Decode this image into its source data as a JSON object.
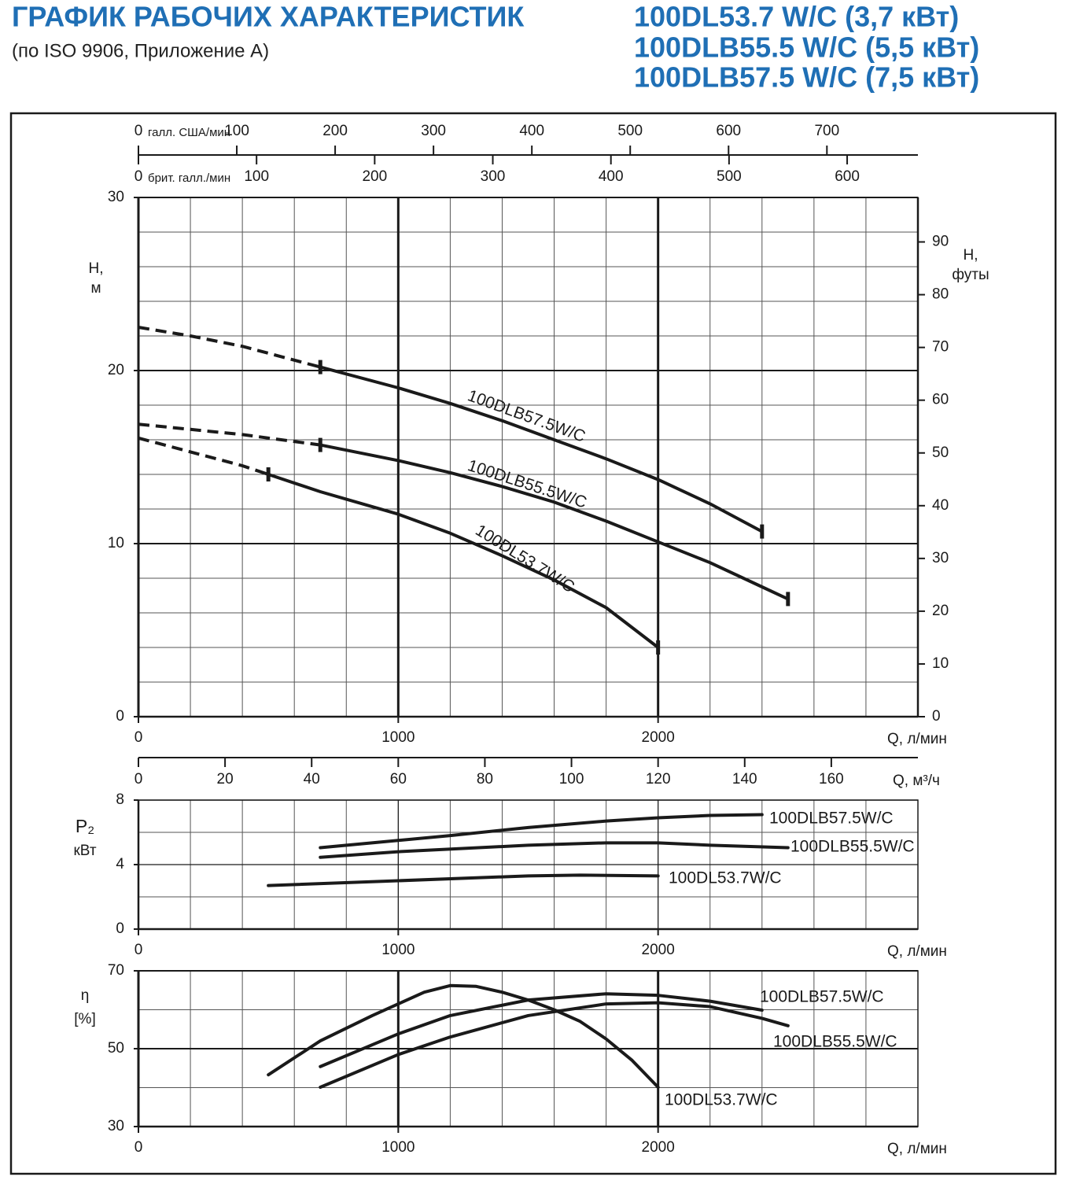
{
  "header": {
    "title": "ГРАФИК РАБОЧИХ ХАРАКТЕРИСТИК",
    "subtitle": "(по ISO 9906, Приложение A)",
    "models": [
      "100DL53.7 W/C (3,7 кВт)",
      "100DLB55.5 W/C (5,5 кВт)",
      "100DLB57.5 W/C (7,5 кВт)"
    ]
  },
  "chart_data": [
    {
      "type": "line",
      "xlabel": "Q, л/мин",
      "ylabel": [
        "H,",
        "м"
      ],
      "y2label": [
        "H,",
        "футы"
      ],
      "xlim": [
        0,
        3000
      ],
      "xticks": [
        0,
        1000,
        2000
      ],
      "ylim": [
        0,
        30
      ],
      "yticks": [
        0,
        10,
        20,
        30
      ],
      "y2lim": [
        0,
        98.43
      ],
      "y2ticks": [
        0,
        10,
        20,
        30,
        40,
        50,
        60,
        70,
        80,
        90
      ],
      "grid": {
        "x": 200,
        "y": 2
      },
      "top_axes": [
        {
          "label": "галл. США/мин",
          "xlim": [
            0,
            792.52
          ],
          "xticks": [
            0,
            100,
            200,
            300,
            400,
            500,
            600,
            700
          ]
        },
        {
          "label": "брит. галл./мин",
          "xlim": [
            0,
            659.9
          ],
          "xticks": [
            0,
            100,
            200,
            300,
            400,
            500,
            600
          ]
        }
      ],
      "bottom_axis2": {
        "label": "Q, м³/ч",
        "xlim": [
          0,
          180
        ],
        "xticks": [
          0,
          20,
          40,
          60,
          80,
          100,
          120,
          140,
          160
        ]
      },
      "series": [
        {
          "name": "100DLB57.5W/C",
          "color": "#1a1a1a",
          "dashed_to": 700,
          "x": [
            0,
            200,
            400,
            700,
            1000,
            1200,
            1400,
            1600,
            1800,
            2000,
            2200,
            2400
          ],
          "values": [
            22.5,
            22.0,
            21.4,
            20.2,
            19.0,
            18.1,
            17.1,
            16.0,
            14.9,
            13.7,
            12.3,
            10.7
          ]
        },
        {
          "name": "100DLB55.5W/C",
          "color": "#1a1a1a",
          "dashed_to": 700,
          "x": [
            0,
            200,
            400,
            700,
            1000,
            1200,
            1400,
            1600,
            1800,
            2000,
            2200,
            2400,
            2500
          ],
          "values": [
            16.9,
            16.6,
            16.3,
            15.7,
            14.8,
            14.1,
            13.3,
            12.4,
            11.3,
            10.1,
            8.9,
            7.5,
            6.8
          ]
        },
        {
          "name": "100DL53.7W/C",
          "color": "#1a1a1a",
          "dashed_to": 500,
          "x": [
            0,
            200,
            400,
            500,
            700,
            1000,
            1200,
            1400,
            1600,
            1800,
            2000
          ],
          "values": [
            16.1,
            15.3,
            14.5,
            14.0,
            13.0,
            11.7,
            10.6,
            9.3,
            7.9,
            6.3,
            4.0
          ]
        }
      ]
    },
    {
      "type": "line",
      "xlabel": "Q, л/мин",
      "ylabel": [
        "P₂",
        "кВт"
      ],
      "xlim": [
        0,
        3000
      ],
      "xticks": [
        0,
        1000,
        2000
      ],
      "ylim": [
        0,
        8
      ],
      "yticks": [
        0,
        4,
        8
      ],
      "grid": {
        "x": 200,
        "y": 2
      },
      "series": [
        {
          "name": "100DLB57.5W/C",
          "color": "#1a1a1a",
          "x": [
            700,
            1000,
            1200,
            1500,
            1800,
            2000,
            2200,
            2400
          ],
          "values": [
            5.05,
            5.5,
            5.8,
            6.3,
            6.7,
            6.9,
            7.05,
            7.1
          ]
        },
        {
          "name": "100DLB55.5W/C",
          "color": "#1a1a1a",
          "x": [
            700,
            1000,
            1500,
            1800,
            2000,
            2200,
            2500
          ],
          "values": [
            4.45,
            4.8,
            5.2,
            5.35,
            5.35,
            5.2,
            5.05
          ]
        },
        {
          "name": "100DL53.7W/C",
          "color": "#1a1a1a",
          "x": [
            500,
            1000,
            1500,
            1700,
            2000
          ],
          "values": [
            2.7,
            3.0,
            3.3,
            3.35,
            3.3
          ]
        }
      ]
    },
    {
      "type": "line",
      "xlabel": "Q, л/мин",
      "ylabel": [
        "η",
        "[%]"
      ],
      "xlim": [
        0,
        3000
      ],
      "xticks": [
        0,
        1000,
        2000
      ],
      "ylim": [
        30,
        70
      ],
      "yticks": [
        30,
        50,
        70
      ],
      "grid": {
        "x": 200,
        "y": 10
      },
      "series": [
        {
          "name": "100DLB57.5W/C",
          "color": "#1a1a1a",
          "x": [
            700,
            1000,
            1200,
            1500,
            1800,
            2000,
            2200,
            2400
          ],
          "values": [
            45.4,
            53.8,
            58.5,
            62.5,
            64.1,
            63.7,
            62.2,
            59.9
          ]
        },
        {
          "name": "100DLB55.5W/C",
          "color": "#1a1a1a",
          "x": [
            700,
            1000,
            1200,
            1500,
            1800,
            2000,
            2200,
            2400,
            2500
          ],
          "values": [
            40.1,
            48.5,
            53.0,
            58.5,
            61.5,
            61.8,
            60.8,
            57.8,
            55.9
          ]
        },
        {
          "name": "100DL53.7W/C",
          "color": "#1a1a1a",
          "x": [
            500,
            700,
            900,
            1000,
            1100,
            1200,
            1300,
            1400,
            1500,
            1600,
            1700,
            1800,
            1900,
            2000
          ],
          "values": [
            43.3,
            52.0,
            58.5,
            61.5,
            64.5,
            66.2,
            66.0,
            64.5,
            62.5,
            60.0,
            57.0,
            52.5,
            47.0,
            40.1
          ]
        }
      ]
    }
  ]
}
